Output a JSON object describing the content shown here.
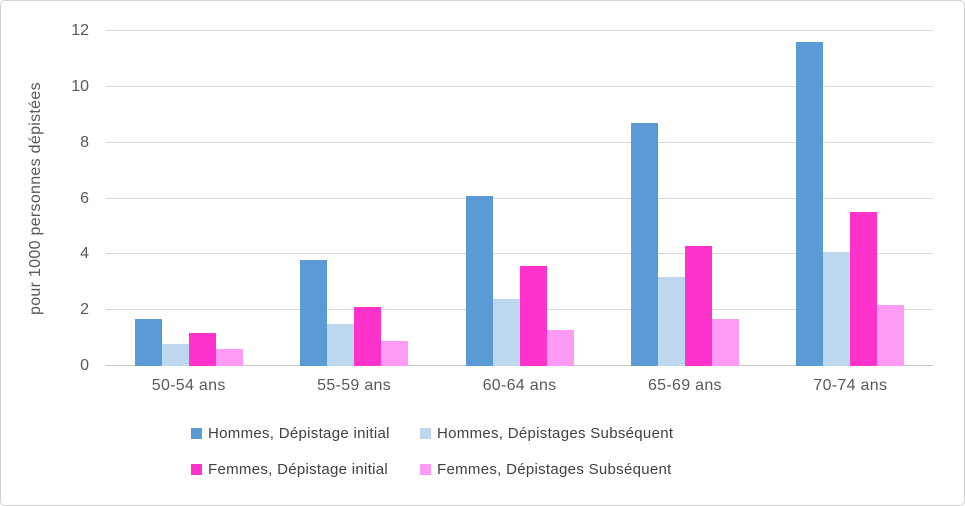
{
  "chart_data": {
    "type": "bar",
    "title": "",
    "xlabel": "",
    "ylabel": "pour 1000 personnes dépistées",
    "ylim": [
      0,
      12
    ],
    "yticks": [
      0,
      2,
      4,
      6,
      8,
      10,
      12
    ],
    "grid": true,
    "legend_position": "bottom",
    "categories": [
      "50-54 ans",
      "55-59 ans",
      "60-64 ans",
      "65-69 ans",
      "70-74 ans"
    ],
    "series": [
      {
        "name": "Hommes, Dépistage initial",
        "color": "#5B9BD5",
        "values": [
          1.7,
          3.8,
          6.1,
          8.7,
          11.6
        ]
      },
      {
        "name": "Hommes, Dépistages Subséquent",
        "color": "#BDD7EE",
        "values": [
          0.8,
          1.5,
          2.4,
          3.2,
          4.1
        ]
      },
      {
        "name": "Femmes, Dépistage initial",
        "color": "#FF33CC",
        "values": [
          1.2,
          2.1,
          3.6,
          4.3,
          5.5
        ]
      },
      {
        "name": "Femmes, Dépistages Subséquent",
        "color": "#FF9BF5",
        "values": [
          0.6,
          0.9,
          1.3,
          1.7,
          2.2
        ]
      }
    ],
    "colors": {
      "gridline": "#D9D9D9",
      "axis_line": "#C6C6C6",
      "tick_text": "#595959",
      "legend_text": "#404040",
      "background": "#FFFFFF",
      "border": "#D2D2D2"
    }
  }
}
